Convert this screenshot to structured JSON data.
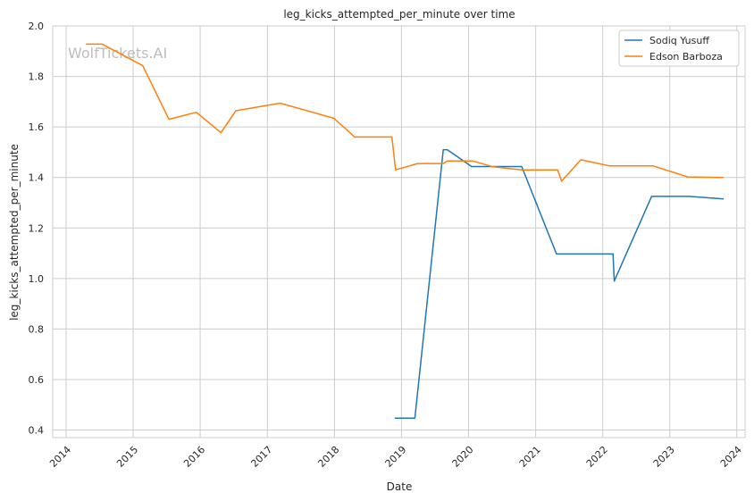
{
  "chart_data": {
    "type": "line",
    "title": "leg_kicks_attempted_per_minute over time",
    "xlabel": "Date",
    "ylabel": "leg_kicks_attempted_per_minute",
    "watermark": "WolfTickets.AI",
    "x_type": "date",
    "xlim": [
      "2013-10-20",
      "2024-02-15"
    ],
    "ylim": [
      0.37,
      2.0
    ],
    "x_ticks": [
      "2014",
      "2015",
      "2016",
      "2017",
      "2018",
      "2019",
      "2020",
      "2021",
      "2022",
      "2023",
      "2024"
    ],
    "y_ticks": [
      "0.4",
      "0.6",
      "0.8",
      "1.0",
      "1.2",
      "1.4",
      "1.6",
      "1.8",
      "2.0"
    ],
    "grid": true,
    "legend_position": "top-right",
    "series": [
      {
        "name": "Sodiq Yusuff",
        "color": "#1f77b4",
        "points": [
          [
            "2018-11-25",
            0.447
          ],
          [
            "2019-03-15",
            0.447
          ],
          [
            "2019-08-17",
            1.51
          ],
          [
            "2019-09-07",
            1.51
          ],
          [
            "2020-01-18",
            1.443
          ],
          [
            "2020-10-17",
            1.443
          ],
          [
            "2021-04-24",
            1.097
          ],
          [
            "2022-02-26",
            1.097
          ],
          [
            "2022-03-05",
            0.99
          ],
          [
            "2022-09-24",
            1.325
          ],
          [
            "2023-04-15",
            1.325
          ],
          [
            "2023-10-21",
            1.315
          ]
        ]
      },
      {
        "name": "Edson Barboza",
        "color": "#ff7f0e",
        "points": [
          [
            "2014-04-19",
            1.928
          ],
          [
            "2014-07-16",
            1.928
          ],
          [
            "2015-02-22",
            1.843
          ],
          [
            "2015-07-15",
            1.63
          ],
          [
            "2015-12-11",
            1.658
          ],
          [
            "2016-04-23",
            1.577
          ],
          [
            "2016-07-13",
            1.664
          ],
          [
            "2017-03-11",
            1.694
          ],
          [
            "2017-12-30",
            1.634
          ],
          [
            "2018-04-21",
            1.56
          ],
          [
            "2018-11-10",
            1.56
          ],
          [
            "2018-11-30",
            1.43
          ],
          [
            "2019-03-30",
            1.455
          ],
          [
            "2019-08-17",
            1.455
          ],
          [
            "2019-09-07",
            1.465
          ],
          [
            "2019-12-14",
            1.465
          ],
          [
            "2020-01-25",
            1.465
          ],
          [
            "2020-05-13",
            1.442
          ],
          [
            "2020-10-17",
            1.43
          ],
          [
            "2021-05-01",
            1.43
          ],
          [
            "2021-05-22",
            1.385
          ],
          [
            "2021-09-04",
            1.47
          ],
          [
            "2022-02-05",
            1.446
          ],
          [
            "2022-10-01",
            1.446
          ],
          [
            "2023-04-08",
            1.402
          ],
          [
            "2023-10-21",
            1.4
          ]
        ]
      }
    ]
  }
}
